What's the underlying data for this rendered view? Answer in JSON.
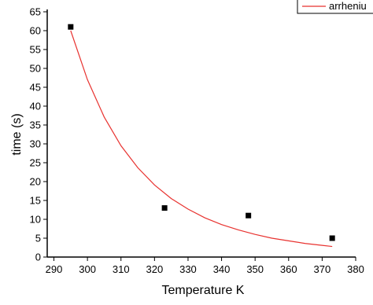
{
  "chart_data": {
    "type": "scatter",
    "xlabel": "Temperature K",
    "ylabel": "time (s)",
    "xlim": [
      288,
      380
    ],
    "xticks": [
      290,
      300,
      310,
      320,
      330,
      340,
      350,
      360,
      370,
      380
    ],
    "ylim": [
      0,
      65
    ],
    "yticks": [
      0,
      5,
      10,
      15,
      20,
      25,
      30,
      35,
      40,
      45,
      50,
      55,
      60,
      65
    ],
    "legend": "top-right",
    "series": [
      {
        "type": "scatter",
        "color": "#000000",
        "x": [
          295,
          323,
          348,
          373
        ],
        "values": [
          61,
          13,
          11,
          5
        ]
      },
      {
        "type": "line",
        "name": "arrheniu",
        "color": "#e8322f",
        "x": [
          295,
          300,
          305,
          310,
          315,
          320,
          325,
          330,
          335,
          340,
          345,
          350,
          355,
          360,
          365,
          370,
          373
        ],
        "values": [
          60,
          47.0,
          37.1,
          29.5,
          23.7,
          19.1,
          15.5,
          12.7,
          10.4,
          8.6,
          7.2,
          6.0,
          5.0,
          4.3,
          3.6,
          3.1,
          2.8
        ]
      }
    ]
  }
}
